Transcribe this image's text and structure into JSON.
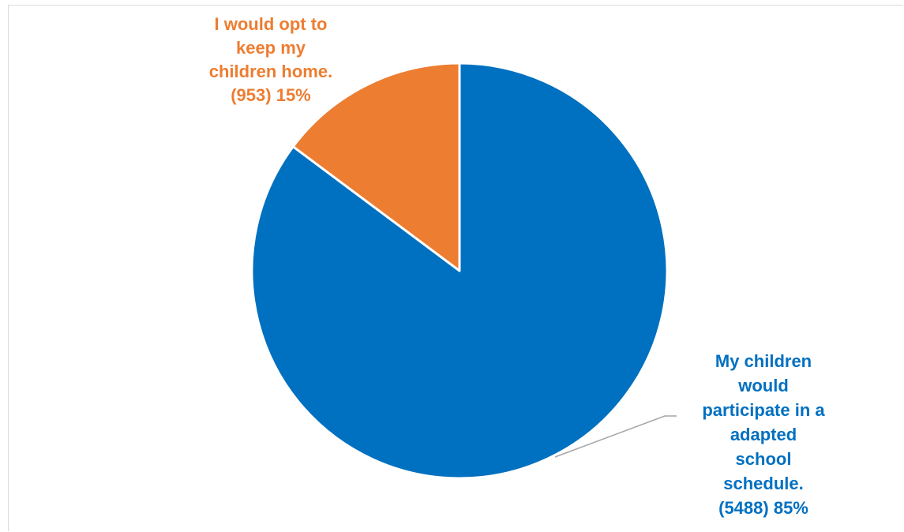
{
  "chart_data": {
    "type": "pie",
    "title": "",
    "slices": [
      {
        "label_lines": [
          "My children",
          "would",
          "participate in a",
          "adapted",
          "school",
          "schedule.",
          "(5488) 85%"
        ],
        "count": 5488,
        "percent": 85,
        "color": "#0070C0"
      },
      {
        "label_lines": [
          "I would opt to",
          "keep my",
          "children home.",
          "(953) 15%"
        ],
        "count": 953,
        "percent": 15,
        "color": "#ED7D31"
      }
    ],
    "legend": "none"
  }
}
